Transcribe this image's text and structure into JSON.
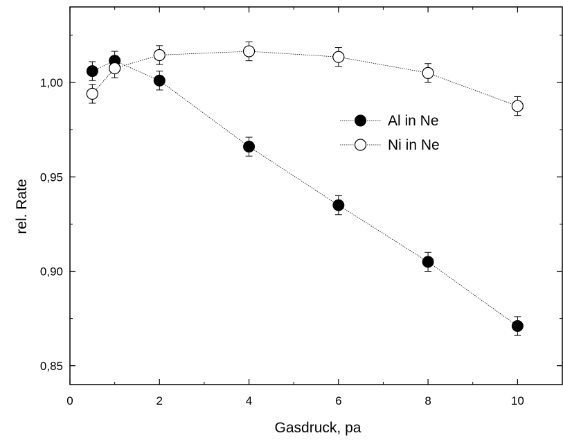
{
  "chart_data": {
    "type": "scatter",
    "title": "",
    "xlabel": "Gasdruck, pa",
    "ylabel": "rel. Rate",
    "xlim": [
      0,
      11
    ],
    "ylim": [
      0.84,
      1.04
    ],
    "x_ticks": [
      0,
      2,
      4,
      6,
      8,
      10
    ],
    "x_tick_labels": [
      "0",
      "2",
      "4",
      "6",
      "8",
      "10"
    ],
    "y_ticks": [
      0.85,
      0.9,
      0.95,
      1.0
    ],
    "y_tick_labels": [
      "0,85",
      "0,90",
      "0,95",
      "1,00"
    ],
    "grid": false,
    "legend_position": "center-right",
    "series": [
      {
        "name": "Al in Ne",
        "marker": "filled-circle",
        "color": "#000000",
        "x": [
          0.5,
          1,
          2,
          4,
          6,
          8,
          10
        ],
        "y": [
          1.006,
          1.0115,
          1.001,
          0.966,
          0.935,
          0.905,
          0.871
        ],
        "error": [
          0.005,
          0.005,
          0.005,
          0.005,
          0.005,
          0.005,
          0.005
        ]
      },
      {
        "name": "Ni in Ne",
        "marker": "open-circle",
        "color": "#000000",
        "x": [
          0.5,
          1,
          2,
          4,
          6,
          8,
          10
        ],
        "y": [
          0.994,
          1.0075,
          1.0145,
          1.0165,
          1.0135,
          1.005,
          0.9875
        ],
        "error": [
          0.005,
          0.005,
          0.005,
          0.005,
          0.005,
          0.005,
          0.005
        ]
      }
    ]
  }
}
